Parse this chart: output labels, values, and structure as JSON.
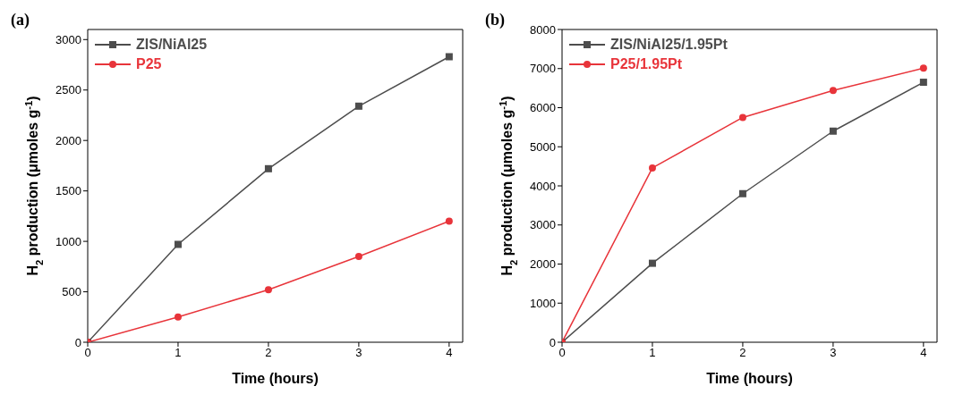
{
  "chart_data": [
    {
      "type": "line",
      "title": "(a)",
      "xlabel": "Time (hours)",
      "ylabel": "H$_{2}$ production (μmoles g$^{-1}$)",
      "x": [
        0,
        1,
        2,
        3,
        4
      ],
      "xlim": [
        0,
        4.15
      ],
      "xticks": [
        0,
        1,
        2,
        3,
        4
      ],
      "ylim": [
        0,
        3100
      ],
      "yticks": [
        0,
        500,
        1000,
        1500,
        2000,
        2500,
        3000
      ],
      "grid": false,
      "legend": "top left",
      "series": [
        {
          "name": "ZIS/NiAl25",
          "color": "#4d4d4d",
          "marker": "square",
          "values": [
            0,
            970,
            1720,
            2340,
            2830
          ]
        },
        {
          "name": "P25",
          "color": "#e8343a",
          "marker": "circle",
          "values": [
            0,
            250,
            520,
            850,
            1200
          ]
        }
      ]
    },
    {
      "type": "line",
      "title": "(b)",
      "xlabel": "Time (hours)",
      "ylabel": "H$_{2}$ production (μmoles g$^{-1}$)",
      "x": [
        0,
        1,
        2,
        3,
        4
      ],
      "xlim": [
        0,
        4.15
      ],
      "xticks": [
        0,
        1,
        2,
        3,
        4
      ],
      "ylim": [
        0,
        8000
      ],
      "yticks": [
        0,
        1000,
        2000,
        3000,
        4000,
        5000,
        6000,
        7000,
        8000
      ],
      "grid": false,
      "legend": "top left",
      "series": [
        {
          "name": "ZIS/NiAl25/1.95Pt",
          "color": "#4d4d4d",
          "marker": "square",
          "values": [
            0,
            2020,
            3800,
            5400,
            6650
          ]
        },
        {
          "name": "P25/1.95Pt",
          "color": "#e8343a",
          "marker": "circle",
          "values": [
            0,
            4460,
            5750,
            6440,
            7010
          ]
        }
      ]
    }
  ]
}
